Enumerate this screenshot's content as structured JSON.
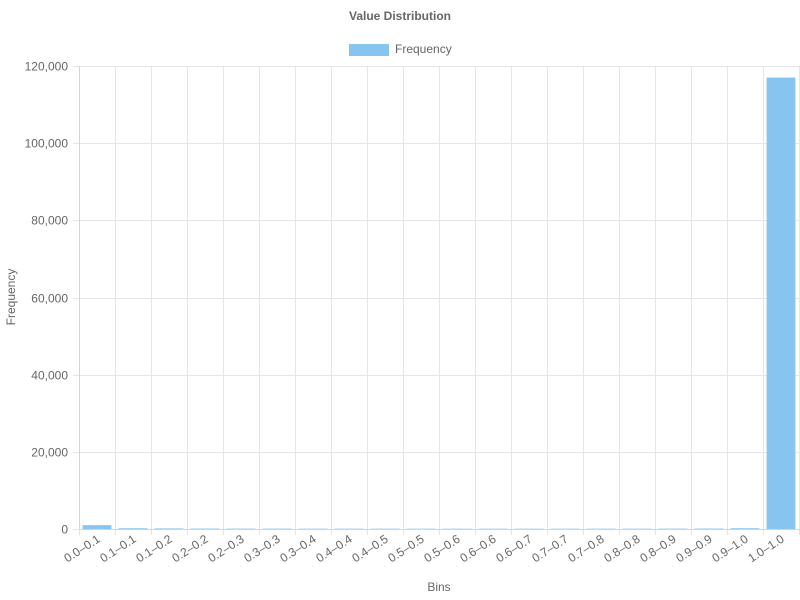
{
  "chart_data": {
    "type": "bar",
    "title": "Value Distribution",
    "xlabel": "Bins",
    "ylabel": "Frequency",
    "categories": [
      "0.0–0.1",
      "0.1–0.1",
      "0.1–0.2",
      "0.2–0.2",
      "0.2–0.3",
      "0.3–0.3",
      "0.3–0.4",
      "0.4–0.4",
      "0.4–0.5",
      "0.5–0.5",
      "0.5–0.6",
      "0.6–0.6",
      "0.6–0.7",
      "0.7–0.7",
      "0.7–0.8",
      "0.8–0.8",
      "0.8–0.9",
      "0.9–0.9",
      "0.9–1.0",
      "1.0–1.0"
    ],
    "series": [
      {
        "name": "Frequency",
        "values": [
          1000,
          200,
          150,
          120,
          100,
          100,
          90,
          90,
          90,
          80,
          80,
          80,
          80,
          80,
          90,
          90,
          100,
          120,
          200,
          117000
        ],
        "color": "#88c4f0"
      }
    ],
    "ylim": [
      0,
      120000
    ],
    "yticks": [
      "0",
      "20,000",
      "40,000",
      "60,000",
      "80,000",
      "100,000",
      "120,000"
    ],
    "ytick_values": [
      0,
      20000,
      40000,
      60000,
      80000,
      100000,
      120000
    ],
    "grid": true,
    "legend_position": "top"
  }
}
